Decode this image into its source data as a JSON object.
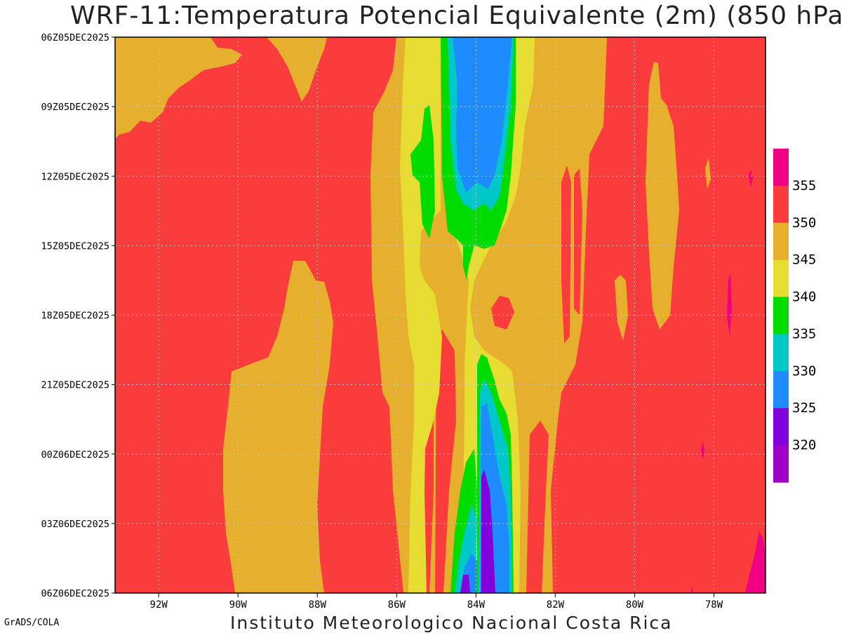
{
  "header": {
    "title": "WRF-11:Temperatura Potencial Equivalente (2m) (850 hPa)"
  },
  "footer": {
    "institution": "Instituto Meteorologico Nacional Costa Rica",
    "credit": "GrADS/COLA"
  },
  "chart_data": {
    "type": "heatmap",
    "title": "WRF-11:Temperatura Potencial Equivalente (2m) (850 hPa)",
    "x_axis": {
      "ticks": [
        "92W",
        "90W",
        "88W",
        "86W",
        "84W",
        "82W",
        "80W",
        "78W"
      ],
      "tick_values": [
        -92,
        -90,
        -88,
        -86,
        -84,
        -82,
        -80,
        -78
      ],
      "range": [
        -93.1,
        -76.7
      ]
    },
    "y_axis": {
      "ticks": [
        "06Z05DEC2025",
        "09Z05DEC2025",
        "12Z05DEC2025",
        "15Z05DEC2025",
        "18Z05DEC2025",
        "21Z05DEC2025",
        "00Z06DEC2025",
        "03Z06DEC2025",
        "06Z06DEC2025"
      ]
    },
    "grid": true,
    "legend": {
      "position": "right",
      "labels": [
        "320",
        "325",
        "330",
        "335",
        "340",
        "345",
        "350",
        "355"
      ],
      "colors": [
        "#a000c8",
        "#8200dc",
        "#1e8cff",
        "#00c8c8",
        "#00dc00",
        "#e6dc32",
        "#e6af2d",
        "#fa3c3c",
        "#f00082"
      ]
    },
    "colors": {
      "background_field": "#fa3c3c"
    }
  }
}
